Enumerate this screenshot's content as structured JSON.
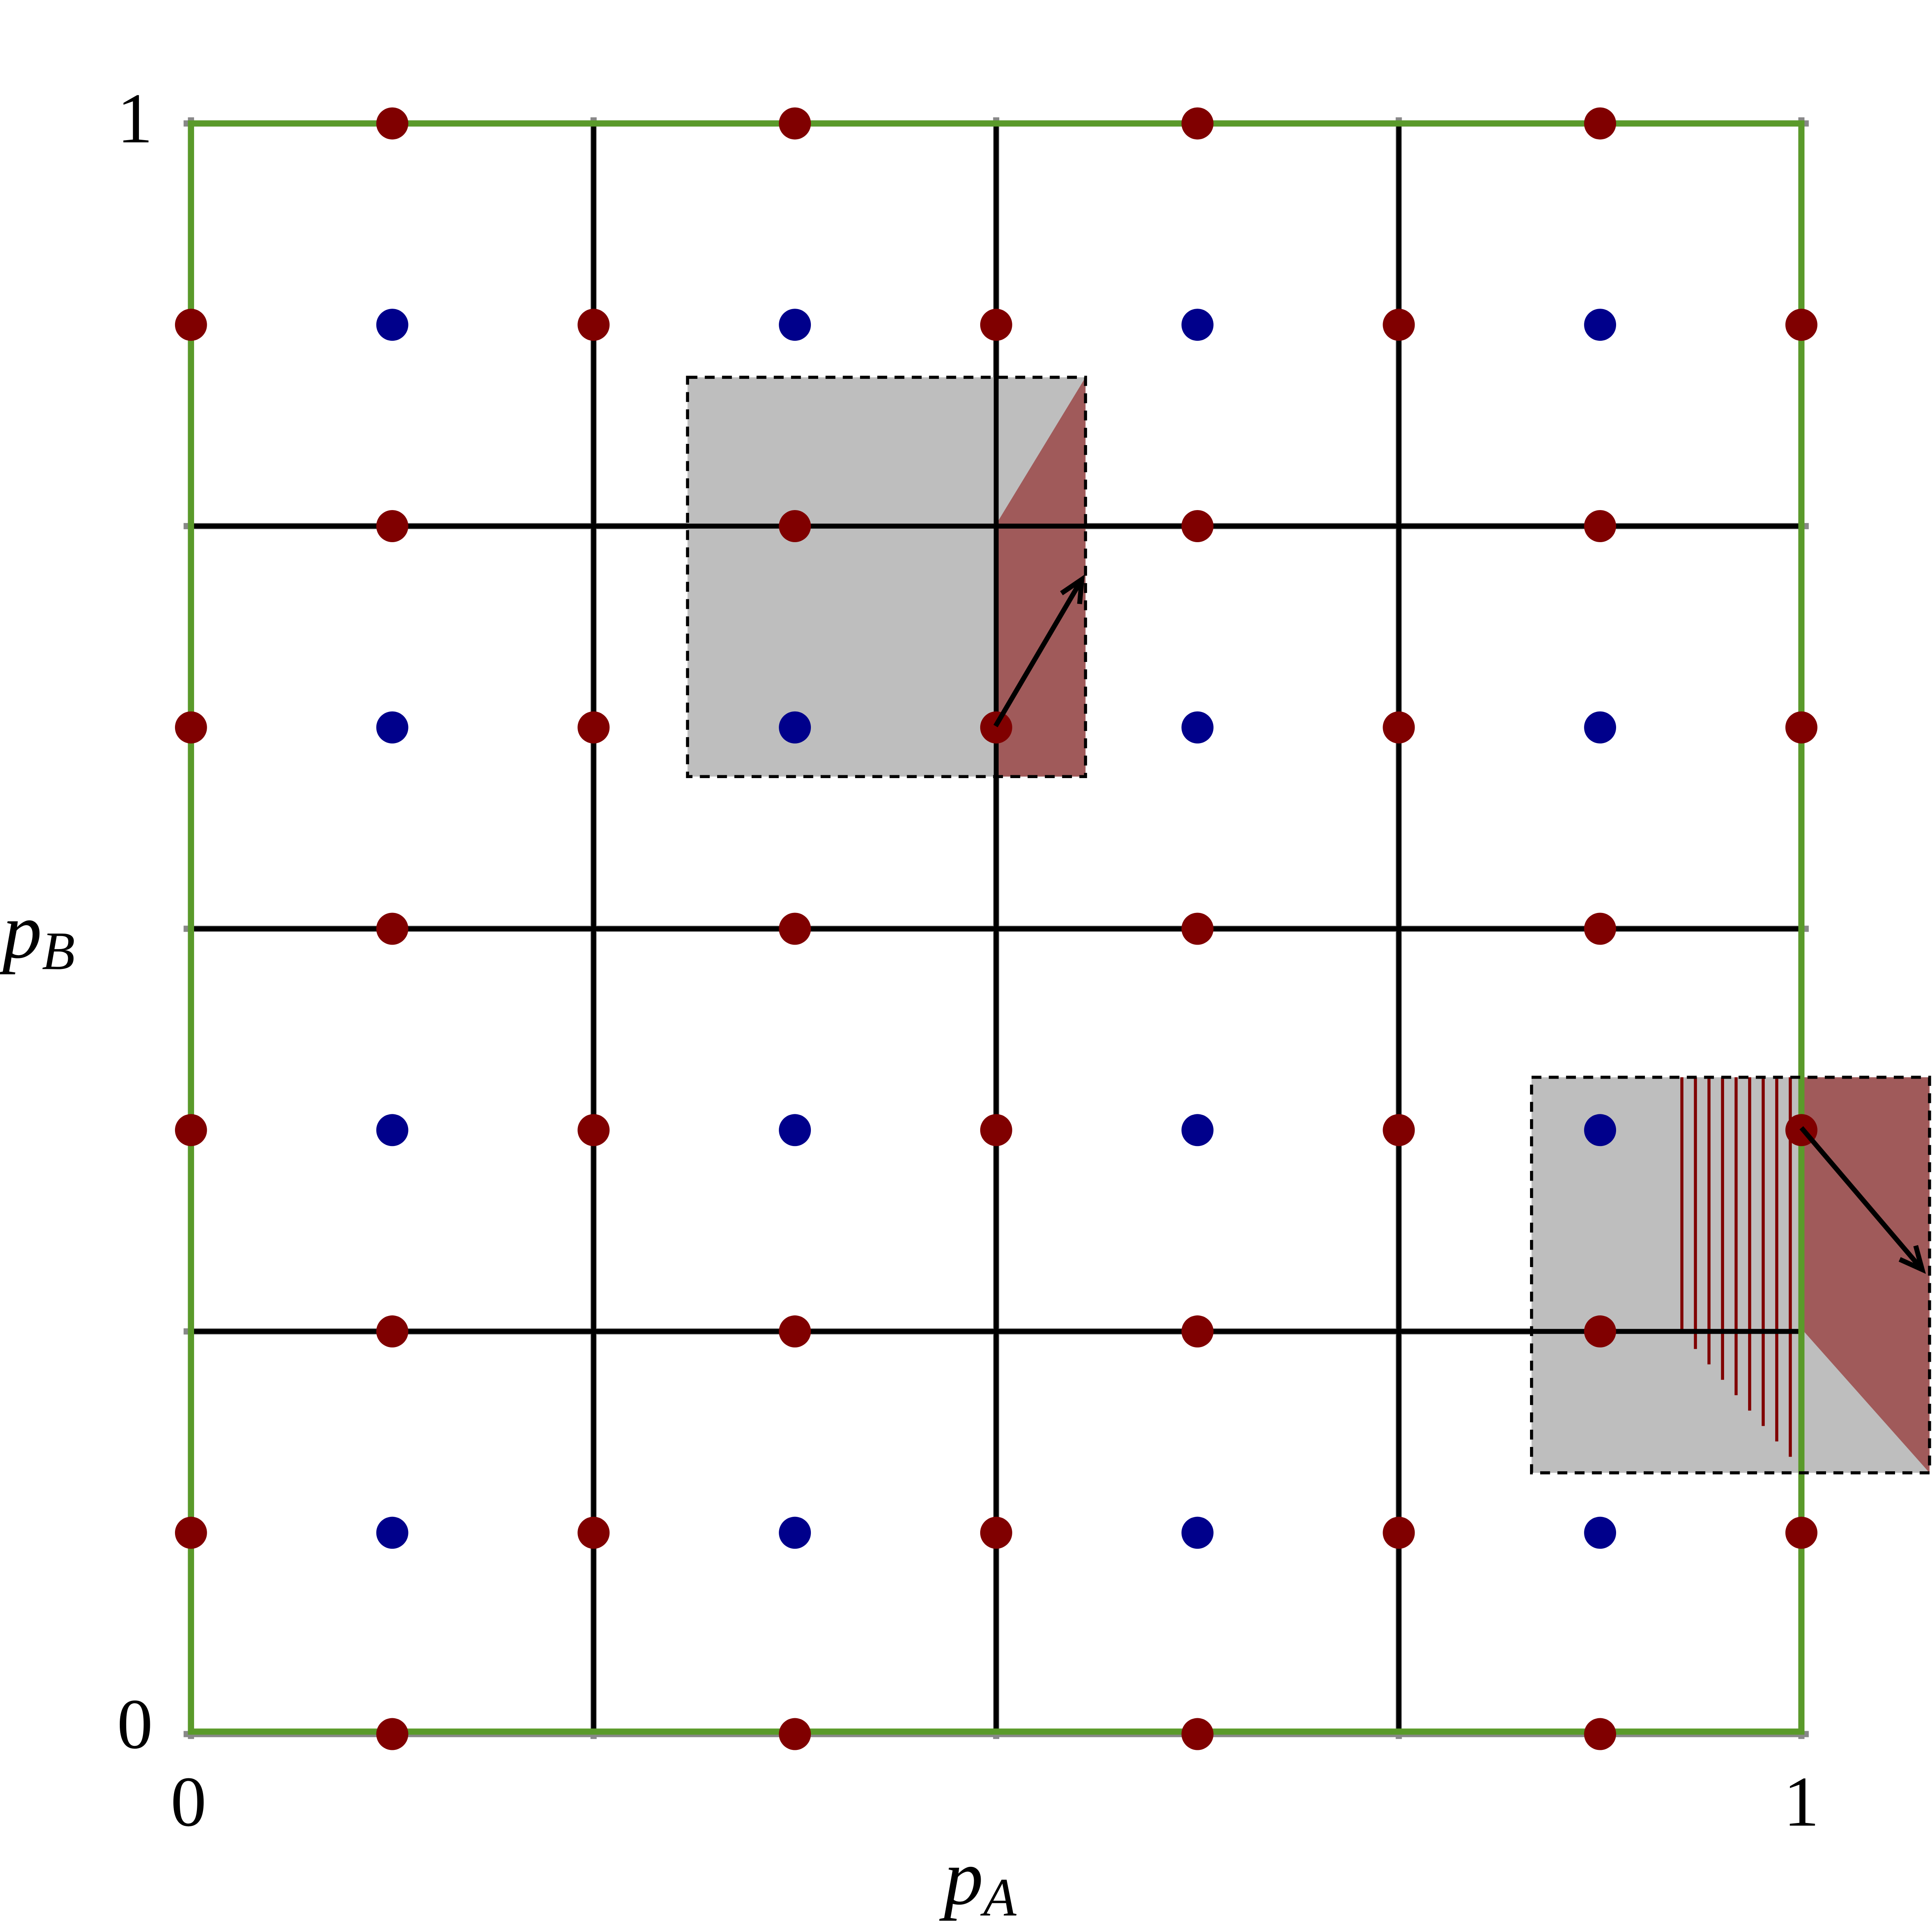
{
  "x_axis": {
    "label": "p",
    "label_sub": "A",
    "tick_labels": [
      "0",
      "1"
    ]
  },
  "y_axis": {
    "label": "p",
    "label_sub": "B",
    "tick_labels": [
      "0",
      "1"
    ]
  }
}
